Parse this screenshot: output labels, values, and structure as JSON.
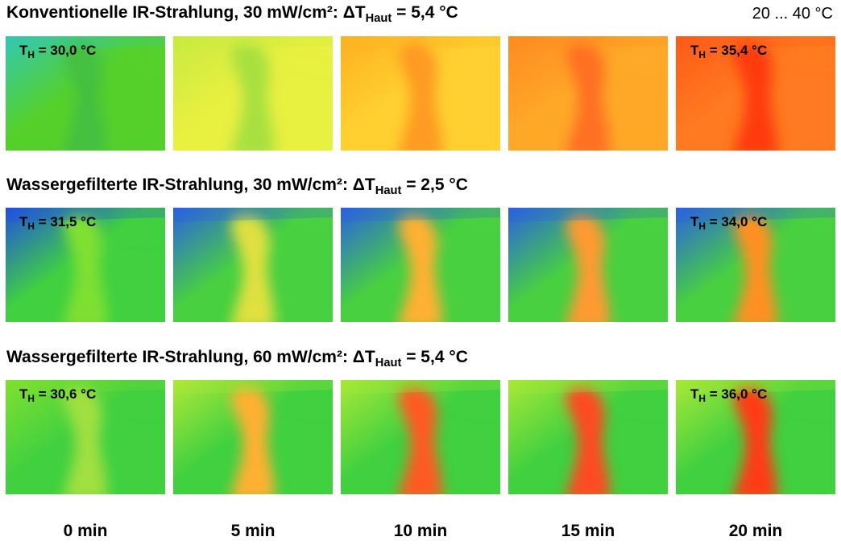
{
  "scale": "20 ... 40 °C",
  "rows": [
    {
      "title": {
        "main": "Konventionelle IR-Strahlung, 30 mW/cm²: ΔT",
        "sub": "Haut",
        "end": " = 5,4 °C"
      },
      "start_label": {
        "main": "T",
        "sub": "H",
        "end": " = 30,0 °C"
      },
      "end_label": {
        "main": "T",
        "sub": "H",
        "end": " = 35,4 °C"
      }
    },
    {
      "title": {
        "main": "Wassergefilterte IR-Strahlung, 30 mW/cm²: ΔT",
        "sub": "Haut",
        "end": " = 2,5 °C"
      },
      "start_label": {
        "main": "T",
        "sub": "H",
        "end": " = 31,5 °C"
      },
      "end_label": {
        "main": "T",
        "sub": "H",
        "end": " = 34,0 °C"
      }
    },
    {
      "title": {
        "main": "Wassergefilterte IR-Strahlung, 60 mW/cm²: ΔT",
        "sub": "Haut",
        "end": " = 5,4 °C"
      },
      "start_label": {
        "main": "T",
        "sub": "H",
        "end": " = 30,6 °C"
      },
      "end_label": {
        "main": "T",
        "sub": "H",
        "end": " = 36,0 °C"
      }
    }
  ],
  "times": [
    "0 min",
    "5 min",
    "10 min",
    "15 min",
    "20 min"
  ]
}
